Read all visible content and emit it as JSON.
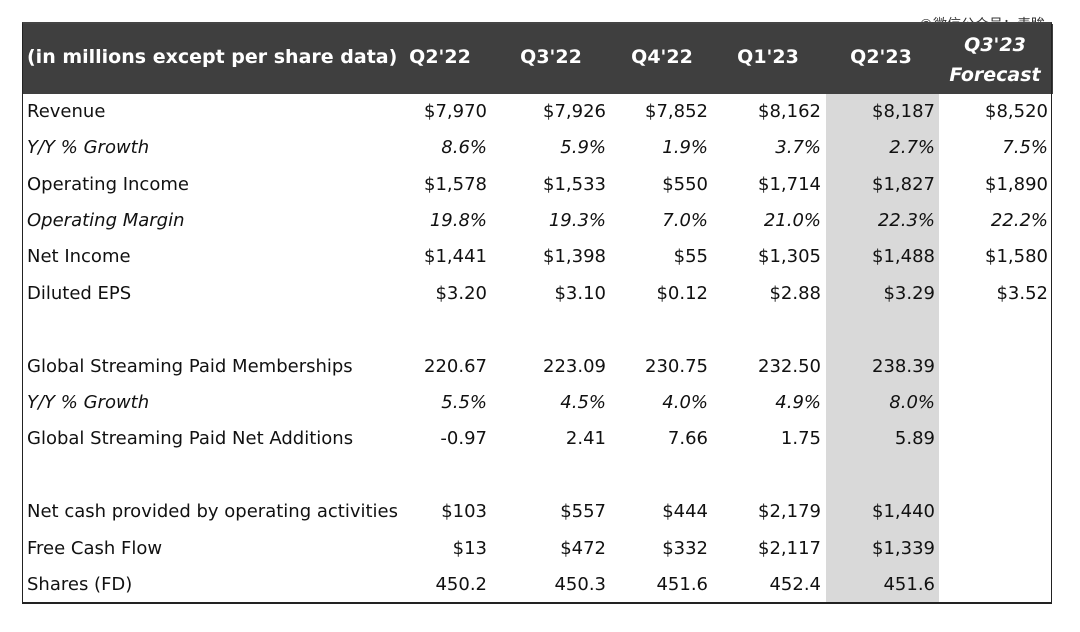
{
  "watermark": "©微信公众号：毒眸",
  "header": {
    "label": "(in millions except per share data)",
    "periods": [
      "Q2'22",
      "Q3'22",
      "Q4'22",
      "Q1'23",
      "Q2'23"
    ],
    "forecast_period": "Q3'23",
    "forecast_label": "Forecast"
  },
  "rows": [
    {
      "label": "Revenue",
      "italic": false,
      "values": [
        "$7,970",
        "$7,926",
        "$7,852",
        "$8,162",
        "$8,187",
        "$8,520"
      ]
    },
    {
      "label": "Y/Y % Growth",
      "italic": true,
      "values": [
        "8.6%",
        "5.9%",
        "1.9%",
        "3.7%",
        "2.7%",
        "7.5%"
      ]
    },
    {
      "label": "Operating Income",
      "italic": false,
      "values": [
        "$1,578",
        "$1,533",
        "$550",
        "$1,714",
        "$1,827",
        "$1,890"
      ]
    },
    {
      "label": "Operating Margin",
      "italic": true,
      "values": [
        "19.8%",
        "19.3%",
        "7.0%",
        "21.0%",
        "22.3%",
        "22.2%"
      ]
    },
    {
      "label": "Net Income",
      "italic": false,
      "values": [
        "$1,441",
        "$1,398",
        "$55",
        "$1,305",
        "$1,488",
        "$1,580"
      ]
    },
    {
      "label": "Diluted EPS",
      "italic": false,
      "values": [
        "$3.20",
        "$3.10",
        "$0.12",
        "$2.88",
        "$3.29",
        "$3.52"
      ]
    },
    {
      "label": "Global Streaming Paid Memberships",
      "italic": false,
      "values": [
        "220.67",
        "223.09",
        "230.75",
        "232.50",
        "238.39",
        ""
      ]
    },
    {
      "label": "Y/Y % Growth",
      "italic": true,
      "values": [
        "5.5%",
        "4.5%",
        "4.0%",
        "4.9%",
        "8.0%",
        ""
      ]
    },
    {
      "label": "Global Streaming Paid Net Additions",
      "italic": false,
      "values": [
        "-0.97",
        "2.41",
        "7.66",
        "1.75",
        "5.89",
        ""
      ]
    },
    {
      "label": "Net cash provided by operating activities",
      "italic": false,
      "values": [
        "$103",
        "$557",
        "$444",
        "$2,179",
        "$1,440",
        ""
      ]
    },
    {
      "label": "Free Cash Flow",
      "italic": false,
      "values": [
        "$13",
        "$472",
        "$332",
        "$2,117",
        "$1,339",
        ""
      ]
    },
    {
      "label": "Shares (FD)",
      "italic": false,
      "values": [
        "450.2",
        "450.3",
        "451.6",
        "452.4",
        "451.6",
        ""
      ]
    }
  ]
}
